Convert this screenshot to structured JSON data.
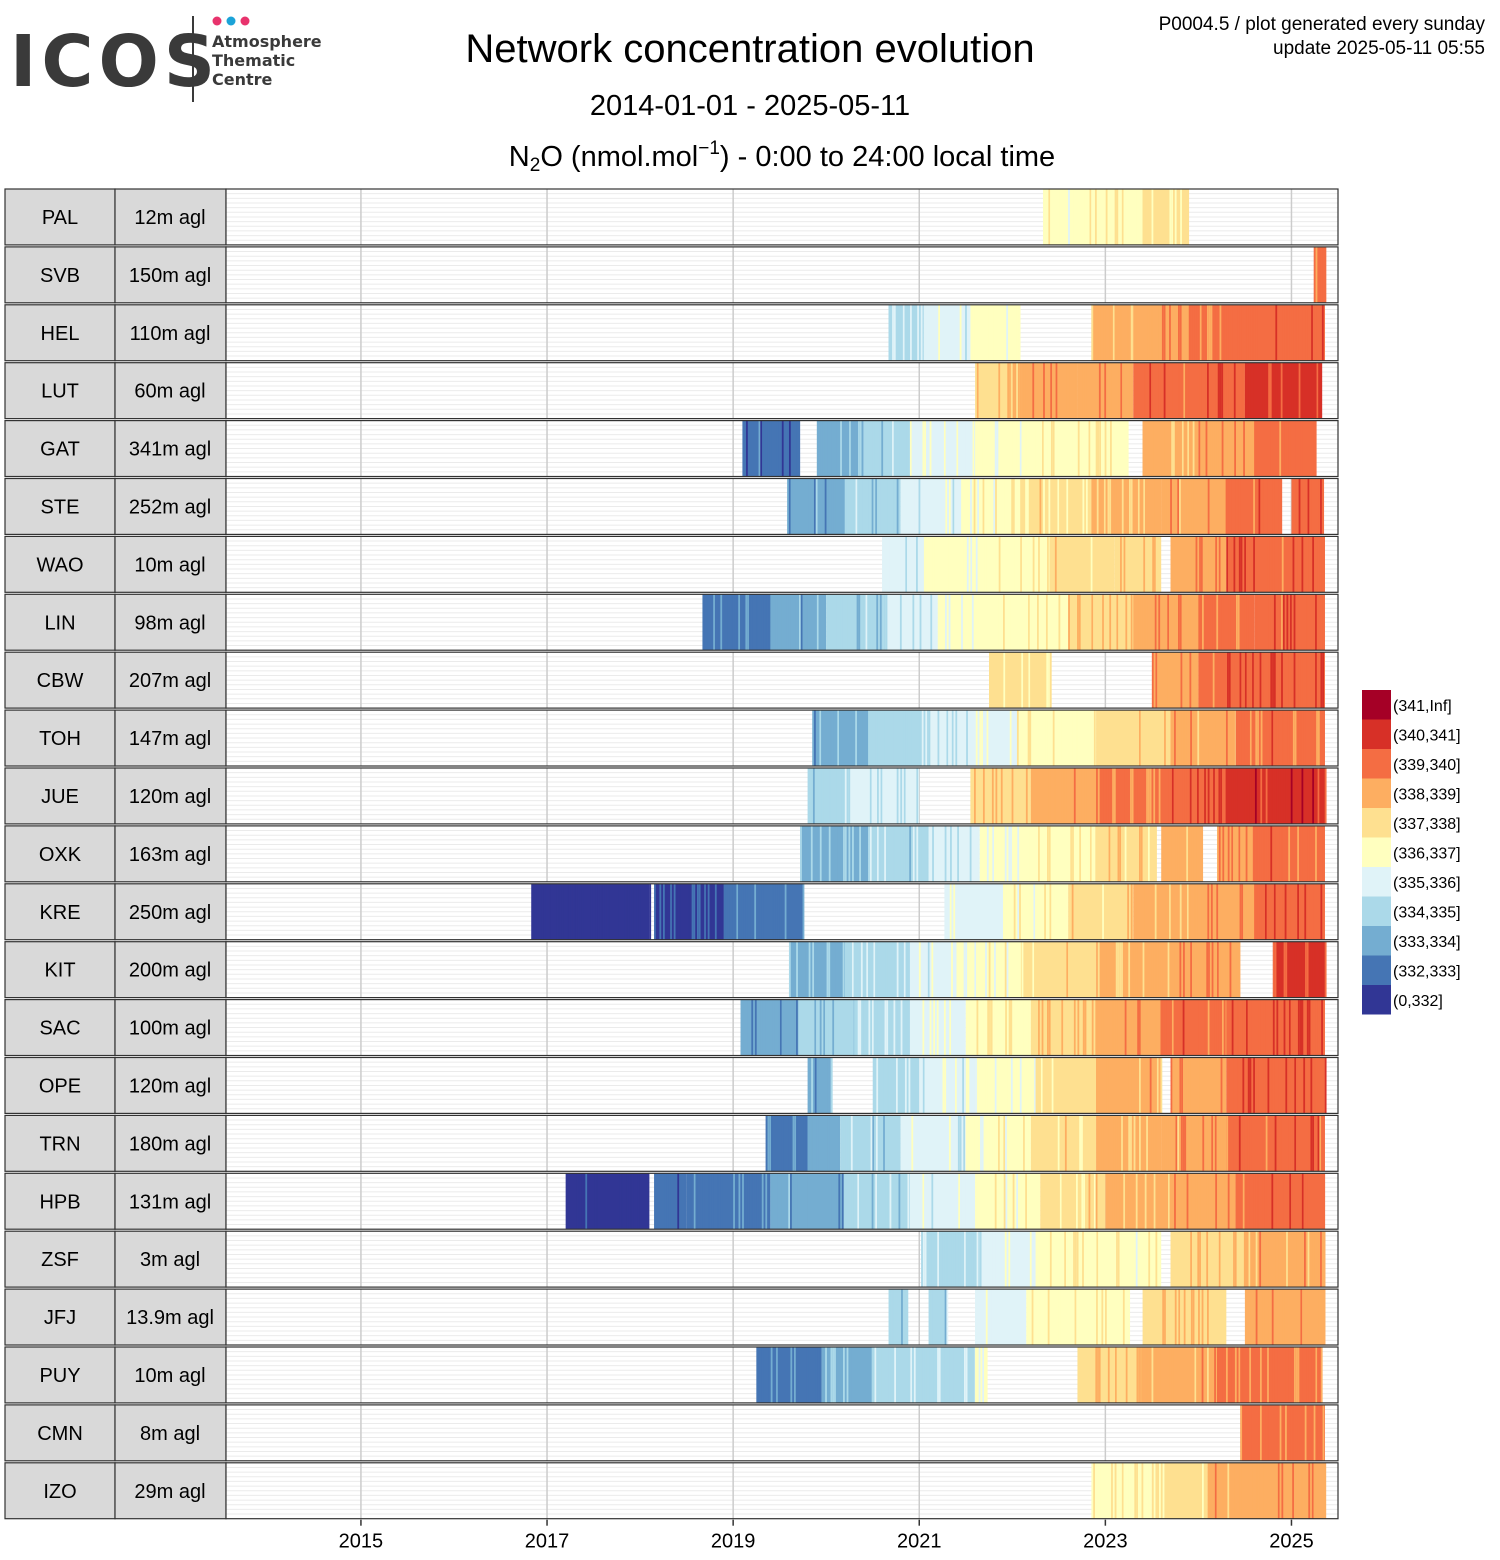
{
  "header": {
    "logo_text": "ICOS",
    "logo_sub": [
      "Atmosphere",
      "Thematic",
      "Centre"
    ],
    "title": "Network concentration evolution",
    "date_range": "2014-01-01 - 2025-05-11",
    "subtitle_prefix": "N",
    "subtitle_sub": "2",
    "subtitle_mid": "O (nmol.mol",
    "subtitle_sup": "−1",
    "subtitle_suffix": ") - 0:00 to 24:00 local time",
    "plot_id": "P0004.5 / plot generated every sunday",
    "update": "update  2025-05-11 05:55"
  },
  "colors": {
    "logo_dots": [
      "#e8336d",
      "#1ba3d8",
      "#e8336d"
    ],
    "logo_text": "#3a3a3a",
    "strip_fill": "#d9d9d9",
    "grid_major": "#cccccc",
    "grid_minor": "#ebebeb"
  },
  "chart_data": {
    "type": "heatmap",
    "title": "Network concentration evolution",
    "x_axis": {
      "min_year": 2013.55,
      "max_year": 2025.5,
      "ticks": [
        "2015",
        "2017",
        "2019",
        "2021",
        "2023",
        "2025"
      ]
    },
    "legend": {
      "placement": "right",
      "bins": [
        {
          "label": "(341,Inf]",
          "color": "#a50026"
        },
        {
          "label": "(340,341]",
          "color": "#d73027"
        },
        {
          "label": "(339,340]",
          "color": "#f46d43"
        },
        {
          "label": "(338,339]",
          "color": "#fdae61"
        },
        {
          "label": "(337,338]",
          "color": "#fee090"
        },
        {
          "label": "(336,337]",
          "color": "#ffffbf"
        },
        {
          "label": "(335,336]",
          "color": "#e0f3f8"
        },
        {
          "label": "(334,335]",
          "color": "#abd9e9"
        },
        {
          "label": "(333,334]",
          "color": "#74add1"
        },
        {
          "label": "(332,333]",
          "color": "#4575b4"
        },
        {
          "label": "(0,332]",
          "color": "#313695"
        }
      ]
    },
    "stations": [
      {
        "code": "PAL",
        "height": "12m agl",
        "segments": [
          [
            2022.33,
            2022.85,
            336.6
          ],
          [
            2022.85,
            2023.4,
            336.9
          ],
          [
            2023.4,
            2023.9,
            337.2
          ]
        ]
      },
      {
        "code": "SVB",
        "height": "150m agl",
        "segments": [
          [
            2025.24,
            2025.36,
            339.5
          ]
        ]
      },
      {
        "code": "HEL",
        "height": "110m agl",
        "segments": [
          [
            2020.67,
            2021.05,
            335.0
          ],
          [
            2021.05,
            2021.55,
            335.6
          ],
          [
            2021.55,
            2022.08,
            336.3
          ],
          [
            2022.85,
            2023.3,
            338.2
          ],
          [
            2023.3,
            2023.9,
            338.7
          ],
          [
            2023.9,
            2024.5,
            339.3
          ],
          [
            2024.5,
            2025.36,
            339.8
          ]
        ]
      },
      {
        "code": "LUT",
        "height": "60m agl",
        "segments": [
          [
            2021.6,
            2022.1,
            338.0
          ],
          [
            2022.1,
            2022.7,
            338.6
          ],
          [
            2022.7,
            2023.3,
            339.0
          ],
          [
            2023.3,
            2023.9,
            339.5
          ],
          [
            2023.9,
            2024.5,
            339.8
          ],
          [
            2024.5,
            2025.33,
            340.2
          ]
        ]
      },
      {
        "code": "GAT",
        "height": "341m agl",
        "segments": [
          [
            2019.1,
            2019.72,
            332.5
          ],
          [
            2019.9,
            2020.4,
            333.7
          ],
          [
            2020.4,
            2020.9,
            334.5
          ],
          [
            2020.9,
            2021.6,
            335.5
          ],
          [
            2021.6,
            2022.3,
            336.4
          ],
          [
            2022.3,
            2023.25,
            336.9
          ],
          [
            2023.4,
            2024.0,
            338.4
          ],
          [
            2024.0,
            2024.6,
            338.9
          ],
          [
            2024.6,
            2025.27,
            339.5
          ]
        ]
      },
      {
        "code": "STE",
        "height": "252m agl",
        "segments": [
          [
            2019.58,
            2020.2,
            333.4
          ],
          [
            2020.2,
            2020.8,
            334.5
          ],
          [
            2020.8,
            2021.45,
            335.4
          ],
          [
            2021.45,
            2022.1,
            336.6
          ],
          [
            2022.1,
            2022.85,
            337.4
          ],
          [
            2022.85,
            2023.6,
            338.3
          ],
          [
            2023.6,
            2024.3,
            338.6
          ],
          [
            2024.3,
            2024.9,
            339.4
          ],
          [
            2025.0,
            2025.35,
            339.8
          ]
        ]
      },
      {
        "code": "WAO",
        "height": "10m agl",
        "segments": [
          [
            2020.6,
            2021.05,
            335.2
          ],
          [
            2021.05,
            2021.7,
            336.2
          ],
          [
            2021.7,
            2022.4,
            336.8
          ],
          [
            2022.4,
            2023.1,
            337.5
          ],
          [
            2023.1,
            2023.6,
            337.9
          ],
          [
            2023.7,
            2024.3,
            338.8
          ],
          [
            2024.3,
            2025.36,
            339.6
          ]
        ]
      },
      {
        "code": "LIN",
        "height": "98m agl",
        "segments": [
          [
            2018.67,
            2019.4,
            332.9
          ],
          [
            2019.4,
            2020.0,
            333.5
          ],
          [
            2020.0,
            2020.6,
            334.3
          ],
          [
            2020.6,
            2021.2,
            335.2
          ],
          [
            2021.2,
            2021.9,
            336.1
          ],
          [
            2021.9,
            2022.6,
            336.9
          ],
          [
            2022.6,
            2023.3,
            337.8
          ],
          [
            2023.3,
            2024.0,
            338.6
          ],
          [
            2024.0,
            2024.6,
            339.1
          ],
          [
            2024.6,
            2025.36,
            339.6
          ]
        ]
      },
      {
        "code": "CBW",
        "height": "207m agl",
        "segments": [
          [
            2021.75,
            2022.42,
            337.4
          ],
          [
            2023.5,
            2024.0,
            338.9
          ],
          [
            2024.0,
            2024.6,
            339.6
          ],
          [
            2024.6,
            2025.36,
            339.9
          ]
        ]
      },
      {
        "code": "TOH",
        "height": "147m agl",
        "segments": [
          [
            2019.85,
            2020.45,
            333.6
          ],
          [
            2020.45,
            2021.1,
            334.5
          ],
          [
            2021.1,
            2021.55,
            335.2
          ],
          [
            2021.55,
            2022.05,
            335.8
          ],
          [
            2022.05,
            2022.9,
            336.8
          ],
          [
            2022.9,
            2023.7,
            337.6
          ],
          [
            2023.7,
            2024.4,
            338.5
          ],
          [
            2024.4,
            2025.36,
            339.3
          ]
        ]
      },
      {
        "code": "JUE",
        "height": "120m agl",
        "segments": [
          [
            2019.8,
            2020.2,
            334.2
          ],
          [
            2020.2,
            2021.0,
            335.1
          ],
          [
            2021.55,
            2022.2,
            337.8
          ],
          [
            2022.2,
            2022.9,
            338.5
          ],
          [
            2022.9,
            2023.6,
            339.1
          ],
          [
            2023.6,
            2024.3,
            339.8
          ],
          [
            2024.3,
            2025.36,
            340.4
          ]
        ]
      },
      {
        "code": "OXK",
        "height": "163m agl",
        "segments": [
          [
            2019.72,
            2020.45,
            333.7
          ],
          [
            2020.45,
            2021.1,
            334.6
          ],
          [
            2021.1,
            2021.65,
            335.2
          ],
          [
            2021.65,
            2022.2,
            336.4
          ],
          [
            2022.2,
            2022.9,
            336.8
          ],
          [
            2022.9,
            2023.55,
            337.6
          ],
          [
            2023.6,
            2024.05,
            338.4
          ],
          [
            2024.2,
            2024.6,
            339.0
          ],
          [
            2024.6,
            2025.36,
            339.4
          ]
        ]
      },
      {
        "code": "KRE",
        "height": "250m agl",
        "segments": [
          [
            2016.83,
            2018.1,
            331.3
          ],
          [
            2018.15,
            2018.9,
            332.0
          ],
          [
            2018.9,
            2019.75,
            332.8
          ],
          [
            2021.27,
            2021.9,
            335.9
          ],
          [
            2021.9,
            2022.6,
            336.5
          ],
          [
            2022.6,
            2023.3,
            337.6
          ],
          [
            2023.3,
            2024.0,
            338.3
          ],
          [
            2024.0,
            2024.6,
            339.0
          ],
          [
            2024.6,
            2025.36,
            339.6
          ]
        ]
      },
      {
        "code": "KIT",
        "height": "200m agl",
        "segments": [
          [
            2019.6,
            2020.2,
            333.9
          ],
          [
            2020.2,
            2020.9,
            334.7
          ],
          [
            2020.9,
            2021.4,
            335.5
          ],
          [
            2021.4,
            2022.1,
            336.5
          ],
          [
            2022.1,
            2022.9,
            337.4
          ],
          [
            2022.9,
            2023.7,
            338.2
          ],
          [
            2023.7,
            2024.45,
            338.8
          ],
          [
            2024.8,
            2025.36,
            340.1
          ]
        ]
      },
      {
        "code": "SAC",
        "height": "100m agl",
        "segments": [
          [
            2019.08,
            2019.7,
            333.3
          ],
          [
            2019.7,
            2020.3,
            334.2
          ],
          [
            2020.3,
            2020.9,
            334.9
          ],
          [
            2020.9,
            2021.5,
            335.8
          ],
          [
            2021.5,
            2022.2,
            337.0
          ],
          [
            2022.2,
            2022.9,
            338.0
          ],
          [
            2022.9,
            2023.6,
            338.7
          ],
          [
            2023.6,
            2024.3,
            339.3
          ],
          [
            2024.3,
            2025.36,
            339.9
          ]
        ]
      },
      {
        "code": "OPE",
        "height": "120m agl",
        "segments": [
          [
            2019.8,
            2020.05,
            333.6
          ],
          [
            2020.5,
            2021.0,
            334.8
          ],
          [
            2021.0,
            2021.6,
            335.6
          ],
          [
            2021.6,
            2022.25,
            336.4
          ],
          [
            2022.25,
            2022.9,
            337.6
          ],
          [
            2022.9,
            2023.6,
            338.4
          ],
          [
            2023.7,
            2024.3,
            339.0
          ],
          [
            2024.3,
            2025.36,
            339.6
          ]
        ]
      },
      {
        "code": "TRN",
        "height": "180m agl",
        "segments": [
          [
            2019.35,
            2019.8,
            332.8
          ],
          [
            2019.8,
            2020.15,
            333.7
          ],
          [
            2020.15,
            2020.8,
            334.5
          ],
          [
            2020.8,
            2021.5,
            335.4
          ],
          [
            2021.5,
            2022.2,
            336.5
          ],
          [
            2022.2,
            2022.9,
            337.3
          ],
          [
            2022.9,
            2023.6,
            338.1
          ],
          [
            2023.6,
            2024.3,
            338.7
          ],
          [
            2024.3,
            2025.36,
            339.5
          ]
        ]
      },
      {
        "code": "HPB",
        "height": "131m agl",
        "segments": [
          [
            2017.2,
            2018.1,
            331.4
          ],
          [
            2018.15,
            2018.5,
            332.1
          ],
          [
            2018.5,
            2019.4,
            332.7
          ],
          [
            2019.4,
            2020.2,
            333.6
          ],
          [
            2020.2,
            2020.9,
            334.6
          ],
          [
            2020.9,
            2021.6,
            335.6
          ],
          [
            2021.6,
            2022.3,
            336.6
          ],
          [
            2022.3,
            2023.0,
            337.5
          ],
          [
            2023.0,
            2023.7,
            338.3
          ],
          [
            2023.7,
            2024.4,
            338.8
          ],
          [
            2024.4,
            2025.36,
            339.5
          ]
        ]
      },
      {
        "code": "ZSF",
        "height": "3m agl",
        "segments": [
          [
            2021.02,
            2021.65,
            334.8
          ],
          [
            2021.65,
            2022.25,
            335.5
          ],
          [
            2022.25,
            2023.6,
            336.7
          ],
          [
            2023.7,
            2024.5,
            337.8
          ],
          [
            2024.5,
            2025.36,
            338.4
          ]
        ]
      },
      {
        "code": "JFJ",
        "height": "13.9m agl",
        "segments": [
          [
            2020.67,
            2020.88,
            334.6
          ],
          [
            2021.1,
            2021.3,
            334.6
          ],
          [
            2021.6,
            2022.15,
            335.6
          ],
          [
            2022.15,
            2023.25,
            336.8
          ],
          [
            2023.4,
            2024.3,
            337.9
          ],
          [
            2024.5,
            2025.36,
            338.7
          ]
        ]
      },
      {
        "code": "PUY",
        "height": "10m agl",
        "segments": [
          [
            2019.25,
            2019.95,
            332.8
          ],
          [
            2019.95,
            2020.5,
            333.9
          ],
          [
            2020.5,
            2021.6,
            334.7
          ],
          [
            2021.6,
            2021.72,
            336.2
          ],
          [
            2022.7,
            2023.4,
            337.9
          ],
          [
            2023.4,
            2024.2,
            338.4
          ],
          [
            2024.2,
            2025.33,
            339.1
          ]
        ]
      },
      {
        "code": "CMN",
        "height": "8m agl",
        "segments": [
          [
            2024.45,
            2025.36,
            339.1
          ]
        ]
      },
      {
        "code": "IZO",
        "height": "29m agl",
        "segments": [
          [
            2022.85,
            2023.5,
            336.7
          ],
          [
            2023.5,
            2024.1,
            337.4
          ],
          [
            2024.1,
            2024.7,
            338.3
          ],
          [
            2024.7,
            2025.36,
            338.7
          ]
        ]
      }
    ]
  }
}
